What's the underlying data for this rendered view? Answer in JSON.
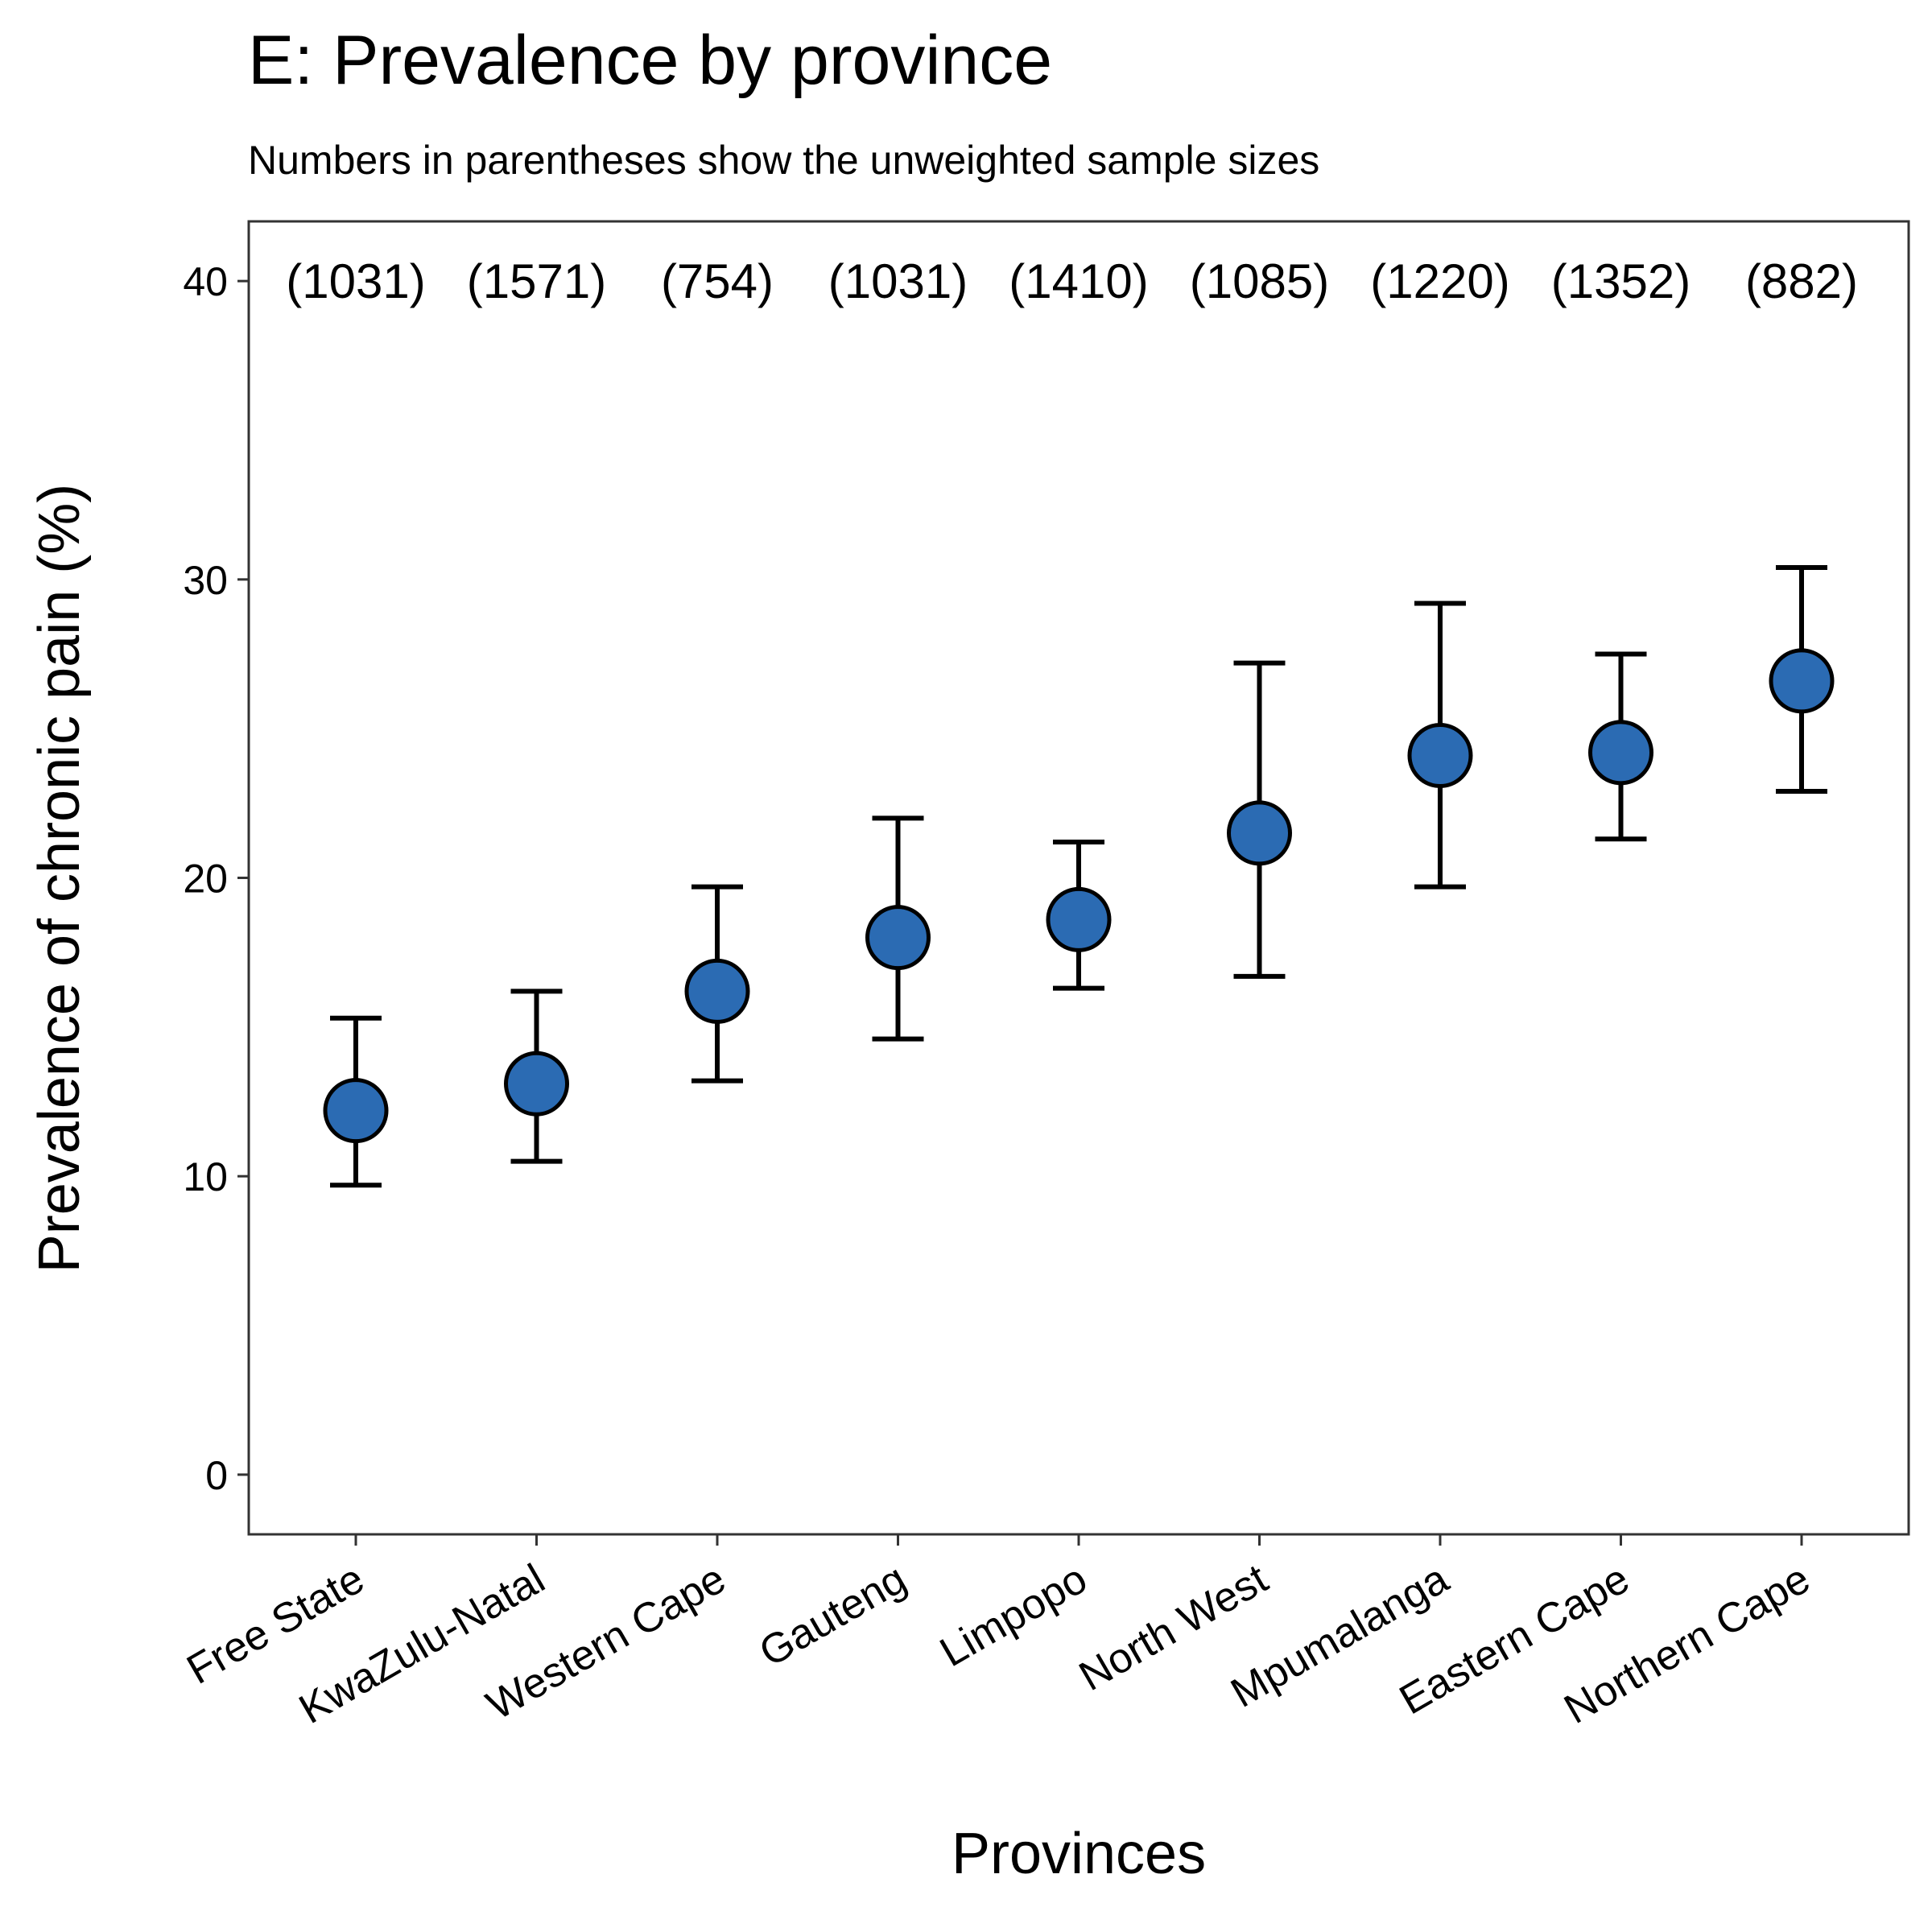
{
  "chart_data": {
    "type": "scatter",
    "title": "E: Prevalence by province",
    "subtitle": "Numbers in parentheses show the unweighted sample sizes",
    "xlabel": "Provinces",
    "ylabel": "Prevalence of chronic pain (%)",
    "ylim": [
      -2,
      42
    ],
    "yticks": [
      0,
      10,
      20,
      30,
      40
    ],
    "grid": false,
    "point_color": "#2b6bb3",
    "categories": [
      "Free State",
      "KwaZulu-Natal",
      "Western Cape",
      "Gauteng",
      "Limpopo",
      "North West",
      "Mpumalanga",
      "Eastern Cape",
      "Northern Cape"
    ],
    "values": [
      12.2,
      13.1,
      16.2,
      18.0,
      18.6,
      21.5,
      24.1,
      24.2,
      26.6
    ],
    "ci_lower": [
      9.7,
      10.5,
      13.2,
      14.6,
      16.3,
      16.7,
      19.7,
      21.3,
      22.9
    ],
    "ci_upper": [
      15.3,
      16.2,
      19.7,
      22.0,
      21.2,
      27.2,
      29.2,
      27.5,
      30.4
    ],
    "annotations": [
      "(1031)",
      "(1571)",
      "(754)",
      "(1031)",
      "(1410)",
      "(1085)",
      "(1220)",
      "(1352)",
      "(882)"
    ]
  }
}
